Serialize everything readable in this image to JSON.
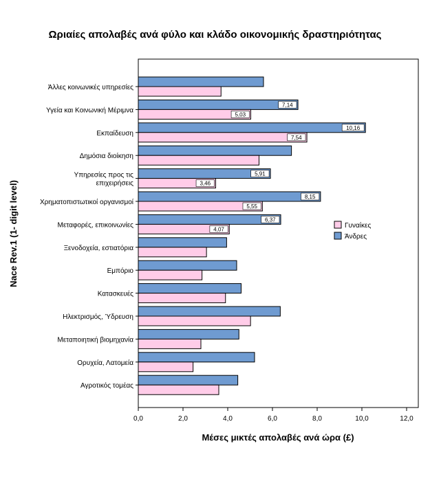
{
  "chart_data": {
    "type": "bar",
    "orientation": "horizontal",
    "title": "Ωριαίες απολαβές ανά φύλο και κλάδο οικονομικής δραστηριότητας",
    "xlabel": "Μέσες μικτές απολαβές ανά ώρα  (£)",
    "ylabel": "Nace Rev.1 (1- digit level)",
    "xlim": [
      0,
      12
    ],
    "xticks": [
      "0,0",
      "2,0",
      "4,0",
      "6,0",
      "8,0",
      "10,0",
      "12,0"
    ],
    "grid": false,
    "legend_position": "right",
    "categories": [
      "Άλλες κοινωνικές υπηρεσίες",
      "Υγεία και Κοινωνική Μέριμνα",
      "Εκπαίδευση",
      "Δημόσια διοίκηση",
      "Υπηρεσίες προς τις επιχειρήσεις",
      "Χρηματοπιστωτικοί οργανισμοί",
      "Μεταφορές, επικοινωνίες",
      "Ξενοδοχεία, εστιατόρια",
      "Εμπόριο",
      "Κατασκευές",
      "Ηλεκτρισμός, Ύδρευση",
      "Μεταποιητική βιομηχανία",
      "Ορυχεία, Λατομεία",
      "Αγροτικός τομέας"
    ],
    "series": [
      {
        "name": "Άνδρες",
        "color": "#6f9bd1",
        "values": [
          5.6,
          7.14,
          10.16,
          6.85,
          5.91,
          8.15,
          6.37,
          3.95,
          4.4,
          4.6,
          6.35,
          4.5,
          5.2,
          4.45
        ],
        "labels": [
          "",
          "7,14",
          "10,16",
          "",
          "5,91",
          "8,15",
          "6,37",
          "",
          "",
          "",
          "",
          "",
          "",
          ""
        ]
      },
      {
        "name": "Γυναίκες",
        "color": "#ffcce8",
        "values": [
          3.7,
          5.03,
          7.54,
          5.4,
          3.46,
          5.55,
          4.07,
          3.05,
          2.85,
          3.9,
          5.02,
          2.8,
          2.45,
          3.6
        ],
        "labels": [
          "",
          "5,03",
          "7,54",
          "",
          "3,46",
          "5,55",
          "4,07",
          "",
          "",
          "",
          "",
          "",
          "",
          ""
        ]
      }
    ],
    "legend": [
      {
        "label": "Γυναίκες",
        "color": "#ffcce8"
      },
      {
        "label": "Άνδρες",
        "color": "#6f9bd1"
      }
    ]
  }
}
